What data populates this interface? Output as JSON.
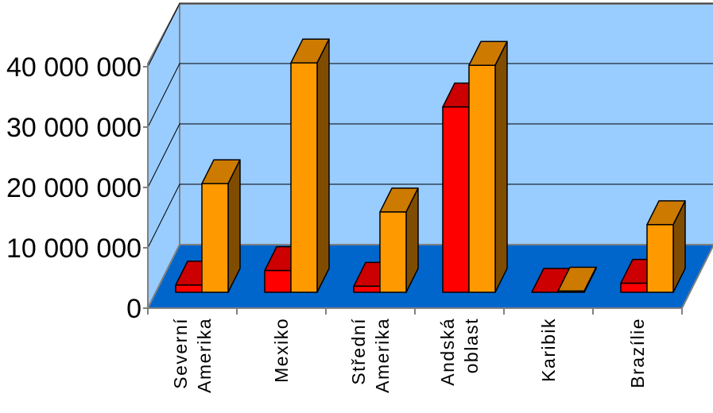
{
  "chart_data": {
    "type": "bar",
    "title": "",
    "xlabel": "",
    "ylabel": "",
    "ylim": [
      0,
      40000000
    ],
    "categories": [
      [
        "Severní",
        "Amerika"
      ],
      [
        "Mexiko"
      ],
      [
        "Střední",
        "Amerika"
      ],
      [
        "Andská",
        "oblast"
      ],
      [
        "Karibik"
      ],
      [
        "Brazílie"
      ]
    ],
    "yticks": [
      {
        "value": 0,
        "label": "0"
      },
      {
        "value": 10000000,
        "label": "10 000 000"
      },
      {
        "value": 20000000,
        "label": "20 000 000"
      },
      {
        "value": 30000000,
        "label": "30 000 000"
      },
      {
        "value": 40000000,
        "label": "40 000 000"
      }
    ],
    "series": [
      {
        "values": [
          1200000,
          3600000,
          1000000,
          30700000,
          0,
          1500000
        ],
        "color": "#ff0000",
        "top_color": "#cc0000",
        "side_color": "#800000"
      },
      {
        "values": [
          18000000,
          38000000,
          13300000,
          37600000,
          200000,
          11200000
        ],
        "color": "#ff9900",
        "top_color": "#cc7a00",
        "side_color": "#804d00"
      }
    ],
    "colors": {
      "wall": "#99ccff",
      "floor": "#0066cc",
      "grid": "#000000",
      "axis": "#808080",
      "bar_outline": "#000000"
    },
    "grid": true,
    "legend": "none"
  }
}
